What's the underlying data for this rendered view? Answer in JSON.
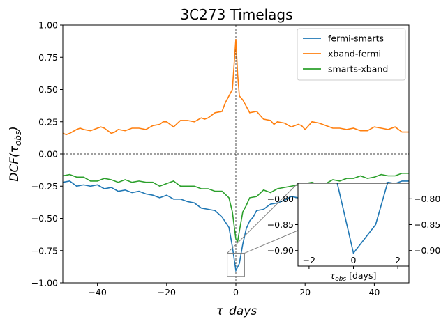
{
  "chart_data": {
    "type": "line",
    "title": "3C273    Timelags",
    "xlabel": "τ  days",
    "ylabel": "DCF(τ_obs)",
    "xlim": [
      -50,
      50
    ],
    "ylim": [
      -1.0,
      1.0
    ],
    "x_ticks": [
      "−40",
      "−20",
      "0",
      "20",
      "40"
    ],
    "y_ticks": [
      "−1.00",
      "−0.75",
      "−0.50",
      "−0.25",
      "0.00",
      "0.25",
      "0.50",
      "0.75",
      "1.00"
    ],
    "reference_lines": {
      "horizontal_at": 0,
      "vertical_at": 0,
      "style": "dashed"
    },
    "legend_position": "upper right",
    "series": [
      {
        "name": "fermi-smarts",
        "color": "#1f77b4",
        "points": [
          [
            -50,
            -0.22
          ],
          [
            -48,
            -0.21
          ],
          [
            -46,
            -0.25
          ],
          [
            -44,
            -0.24
          ],
          [
            -42,
            -0.25
          ],
          [
            -40,
            -0.24
          ],
          [
            -38,
            -0.27
          ],
          [
            -36,
            -0.26
          ],
          [
            -34,
            -0.29
          ],
          [
            -32,
            -0.28
          ],
          [
            -30,
            -0.3
          ],
          [
            -28,
            -0.29
          ],
          [
            -26,
            -0.31
          ],
          [
            -24,
            -0.32
          ],
          [
            -22,
            -0.34
          ],
          [
            -20,
            -0.32
          ],
          [
            -18,
            -0.35
          ],
          [
            -16,
            -0.35
          ],
          [
            -14,
            -0.37
          ],
          [
            -12,
            -0.38
          ],
          [
            -10,
            -0.42
          ],
          [
            -8,
            -0.43
          ],
          [
            -6,
            -0.44
          ],
          [
            -4,
            -0.49
          ],
          [
            -2,
            -0.57
          ],
          [
            -1,
            -0.72
          ],
          [
            0,
            -0.905
          ],
          [
            1,
            -0.85
          ],
          [
            2,
            -0.7
          ],
          [
            3,
            -0.58
          ],
          [
            4,
            -0.52
          ],
          [
            5,
            -0.49
          ],
          [
            6,
            -0.44
          ],
          [
            8,
            -0.43
          ],
          [
            10,
            -0.39
          ],
          [
            12,
            -0.38
          ],
          [
            14,
            -0.36
          ],
          [
            16,
            -0.33
          ],
          [
            18,
            -0.34
          ],
          [
            20,
            -0.32
          ],
          [
            22,
            -0.3
          ],
          [
            24,
            -0.31
          ],
          [
            26,
            -0.28
          ],
          [
            28,
            -0.28
          ],
          [
            30,
            -0.26
          ],
          [
            32,
            -0.25
          ],
          [
            34,
            -0.26
          ],
          [
            36,
            -0.24
          ],
          [
            38,
            -0.25
          ],
          [
            40,
            -0.23
          ],
          [
            42,
            -0.24
          ],
          [
            44,
            -0.22
          ],
          [
            46,
            -0.23
          ],
          [
            48,
            -0.21
          ],
          [
            50,
            -0.21
          ]
        ]
      },
      {
        "name": "xband-fermi",
        "color": "#ff7f0e",
        "points": [
          [
            -50,
            0.16
          ],
          [
            -49,
            0.15
          ],
          [
            -48,
            0.16
          ],
          [
            -46,
            0.19
          ],
          [
            -45,
            0.2
          ],
          [
            -44,
            0.19
          ],
          [
            -42,
            0.18
          ],
          [
            -40,
            0.2
          ],
          [
            -39,
            0.21
          ],
          [
            -38,
            0.2
          ],
          [
            -36,
            0.16
          ],
          [
            -35,
            0.17
          ],
          [
            -34,
            0.19
          ],
          [
            -32,
            0.18
          ],
          [
            -30,
            0.2
          ],
          [
            -28,
            0.2
          ],
          [
            -26,
            0.19
          ],
          [
            -24,
            0.22
          ],
          [
            -22,
            0.23
          ],
          [
            -21,
            0.25
          ],
          [
            -20,
            0.25
          ],
          [
            -18,
            0.21
          ],
          [
            -16,
            0.26
          ],
          [
            -14,
            0.26
          ],
          [
            -12,
            0.25
          ],
          [
            -10,
            0.28
          ],
          [
            -9,
            0.27
          ],
          [
            -8,
            0.28
          ],
          [
            -6,
            0.32
          ],
          [
            -4,
            0.33
          ],
          [
            -3,
            0.4
          ],
          [
            -2,
            0.45
          ],
          [
            -1,
            0.5
          ],
          [
            0,
            0.89
          ],
          [
            0.5,
            0.62
          ],
          [
            1,
            0.45
          ],
          [
            2,
            0.42
          ],
          [
            4,
            0.32
          ],
          [
            6,
            0.33
          ],
          [
            7,
            0.3
          ],
          [
            8,
            0.27
          ],
          [
            10,
            0.26
          ],
          [
            11,
            0.23
          ],
          [
            12,
            0.25
          ],
          [
            14,
            0.24
          ],
          [
            16,
            0.21
          ],
          [
            18,
            0.23
          ],
          [
            19,
            0.22
          ],
          [
            20,
            0.19
          ],
          [
            22,
            0.25
          ],
          [
            24,
            0.24
          ],
          [
            26,
            0.22
          ],
          [
            28,
            0.2
          ],
          [
            30,
            0.2
          ],
          [
            32,
            0.19
          ],
          [
            34,
            0.2
          ],
          [
            36,
            0.18
          ],
          [
            38,
            0.18
          ],
          [
            40,
            0.21
          ],
          [
            42,
            0.2
          ],
          [
            44,
            0.19
          ],
          [
            46,
            0.21
          ],
          [
            48,
            0.17
          ],
          [
            50,
            0.17
          ]
        ]
      },
      {
        "name": "smarts-xband",
        "color": "#2ca02c",
        "points": [
          [
            -50,
            -0.17
          ],
          [
            -48,
            -0.16
          ],
          [
            -46,
            -0.18
          ],
          [
            -44,
            -0.18
          ],
          [
            -42,
            -0.21
          ],
          [
            -40,
            -0.21
          ],
          [
            -38,
            -0.19
          ],
          [
            -36,
            -0.2
          ],
          [
            -34,
            -0.22
          ],
          [
            -32,
            -0.2
          ],
          [
            -30,
            -0.22
          ],
          [
            -28,
            -0.21
          ],
          [
            -26,
            -0.22
          ],
          [
            -24,
            -0.22
          ],
          [
            -22,
            -0.25
          ],
          [
            -20,
            -0.23
          ],
          [
            -18,
            -0.21
          ],
          [
            -16,
            -0.25
          ],
          [
            -14,
            -0.25
          ],
          [
            -12,
            -0.25
          ],
          [
            -10,
            -0.27
          ],
          [
            -8,
            -0.27
          ],
          [
            -6,
            -0.29
          ],
          [
            -4,
            -0.29
          ],
          [
            -2,
            -0.34
          ],
          [
            -1,
            -0.45
          ],
          [
            0,
            -0.66
          ],
          [
            0.5,
            -0.68
          ],
          [
            1,
            -0.6
          ],
          [
            2,
            -0.45
          ],
          [
            3,
            -0.4
          ],
          [
            4,
            -0.34
          ],
          [
            6,
            -0.33
          ],
          [
            8,
            -0.28
          ],
          [
            10,
            -0.3
          ],
          [
            12,
            -0.27
          ],
          [
            14,
            -0.26
          ],
          [
            16,
            -0.25
          ],
          [
            18,
            -0.24
          ],
          [
            20,
            -0.23
          ],
          [
            22,
            -0.22
          ],
          [
            24,
            -0.24
          ],
          [
            26,
            -0.23
          ],
          [
            28,
            -0.2
          ],
          [
            30,
            -0.21
          ],
          [
            32,
            -0.19
          ],
          [
            34,
            -0.19
          ],
          [
            36,
            -0.17
          ],
          [
            38,
            -0.19
          ],
          [
            40,
            -0.18
          ],
          [
            42,
            -0.16
          ],
          [
            44,
            -0.17
          ],
          [
            46,
            -0.17
          ],
          [
            48,
            -0.15
          ],
          [
            50,
            -0.15
          ]
        ]
      }
    ],
    "inset": {
      "xlim": [
        -2.5,
        2.5
      ],
      "ylim": [
        -0.93,
        -0.77
      ],
      "x_ticks": [
        "−2",
        "0",
        "2"
      ],
      "y_ticks": [
        "−0.80",
        "−0.85",
        "−0.90"
      ],
      "xlabel": "τ_obs [days]",
      "zoom_box": {
        "x": [
          -2.5,
          2.5
        ],
        "y": [
          -0.95,
          -0.77
        ]
      }
    }
  }
}
